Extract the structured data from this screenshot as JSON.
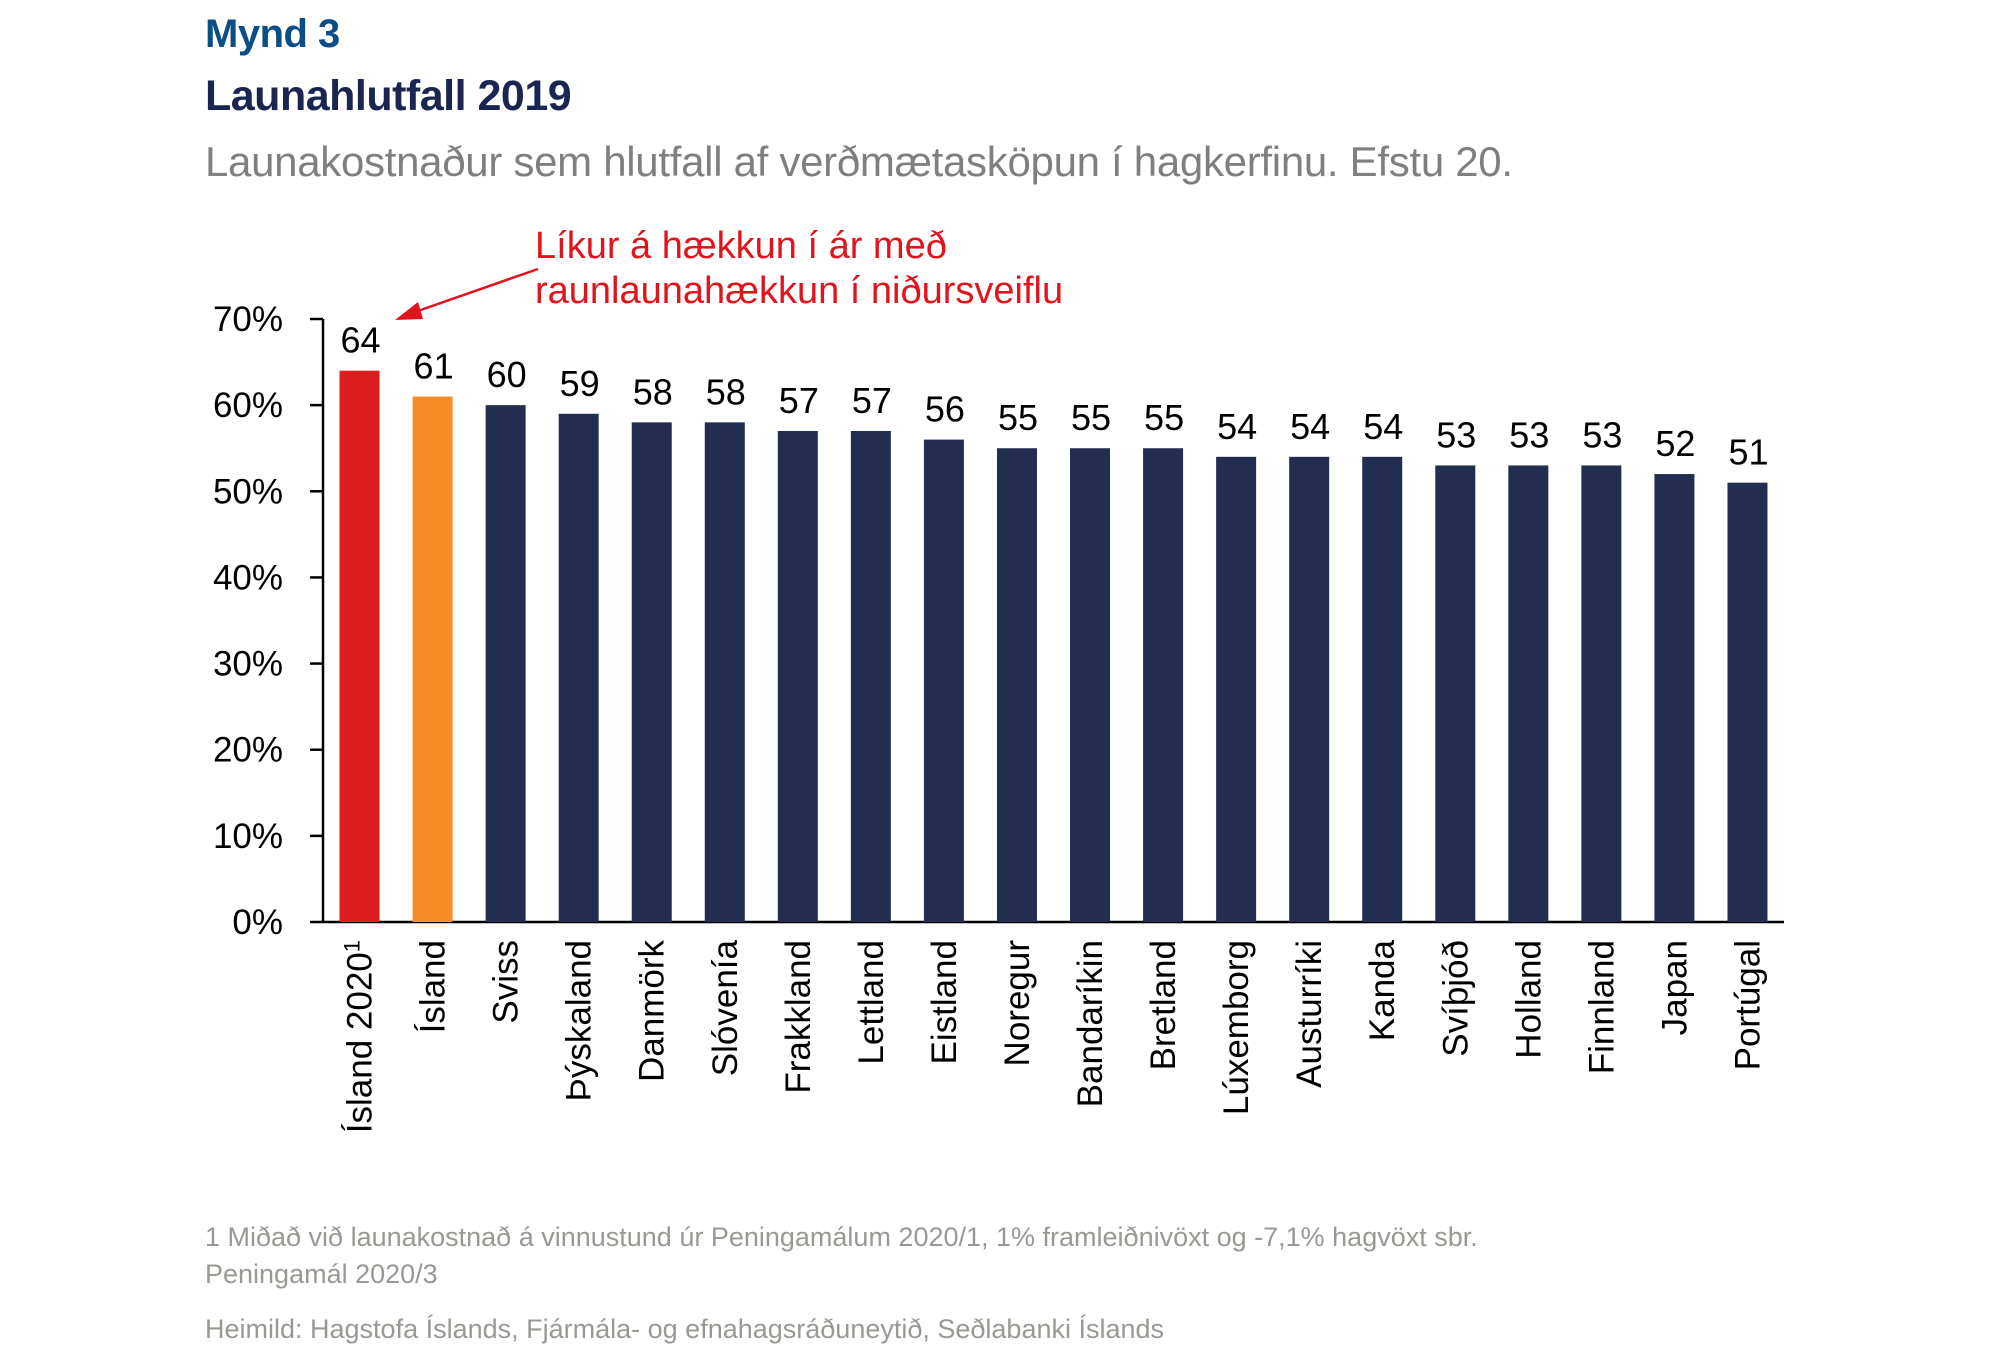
{
  "header": {
    "figure_label": "Mynd 3",
    "title": "Launahlutfall 2019",
    "subtitle": "Launakostnaður sem hlutfall af verðmætasköpun í hagkerfinu. Efstu 20."
  },
  "chart_data": {
    "type": "bar",
    "title": "Launahlutfall 2019",
    "subtitle": "Launakostnaður sem hlutfall af verðmætasköpun í hagkerfinu. Efstu 20.",
    "xlabel": "",
    "ylabel": "",
    "ylim": [
      0,
      70
    ],
    "yticks": [
      0,
      10,
      20,
      30,
      40,
      50,
      60,
      70
    ],
    "ytick_labels": [
      "0%",
      "10%",
      "20%",
      "30%",
      "40%",
      "50%",
      "60%",
      "70%"
    ],
    "grid": false,
    "legend": null,
    "categories": [
      "Ísland 2020",
      "Ísland",
      "Sviss",
      "Þýskaland",
      "Danmörk",
      "Slóvenía",
      "Frakkland",
      "Lettland",
      "Eistland",
      "Noregur",
      "Bandaríkin",
      "Bretland",
      "Lúxemborg",
      "Austurríki",
      "Kanda",
      "Svíþjóð",
      "Holland",
      "Finnland",
      "Japan",
      "Portúgal"
    ],
    "category_superscripts": [
      "1",
      "",
      "",
      "",
      "",
      "",
      "",
      "",
      "",
      "",
      "",
      "",
      "",
      "",
      "",
      "",
      "",
      "",
      "",
      ""
    ],
    "values": [
      64,
      61,
      60,
      59,
      58,
      58,
      57,
      57,
      56,
      55,
      55,
      55,
      54,
      54,
      54,
      53,
      53,
      53,
      52,
      51
    ],
    "data_labels": [
      "64",
      "61",
      "60",
      "59",
      "58",
      "58",
      "57",
      "57",
      "56",
      "55",
      "55",
      "55",
      "54",
      "54",
      "54",
      "53",
      "53",
      "53",
      "52",
      "51"
    ],
    "bar_colors": [
      "#dc1c1e",
      "#f78b26",
      "#222d4f",
      "#222d4f",
      "#222d4f",
      "#222d4f",
      "#222d4f",
      "#222d4f",
      "#222d4f",
      "#222d4f",
      "#222d4f",
      "#222d4f",
      "#222d4f",
      "#222d4f",
      "#222d4f",
      "#222d4f",
      "#222d4f",
      "#222d4f",
      "#222d4f",
      "#222d4f"
    ],
    "annotation": {
      "lines": [
        "Líkur á hækkun í ár með",
        "raunlaunahækkun í niðursveiflu"
      ],
      "color": "#e0141c",
      "points_to_category": "Ísland 2020"
    }
  },
  "footnotes": {
    "note1_line1": "1 Miðað við launakostnað á vinnustund úr Peningamálum 2020/1, 1% framleiðnivöxt og -7,1% hagvöxt sbr.",
    "note1_line2": "Peningamál 2020/3",
    "source": "Heimild: Hagstofa Íslands, Fjármála- og efnahagsráðuneytið, Seðlabanki Íslands"
  }
}
